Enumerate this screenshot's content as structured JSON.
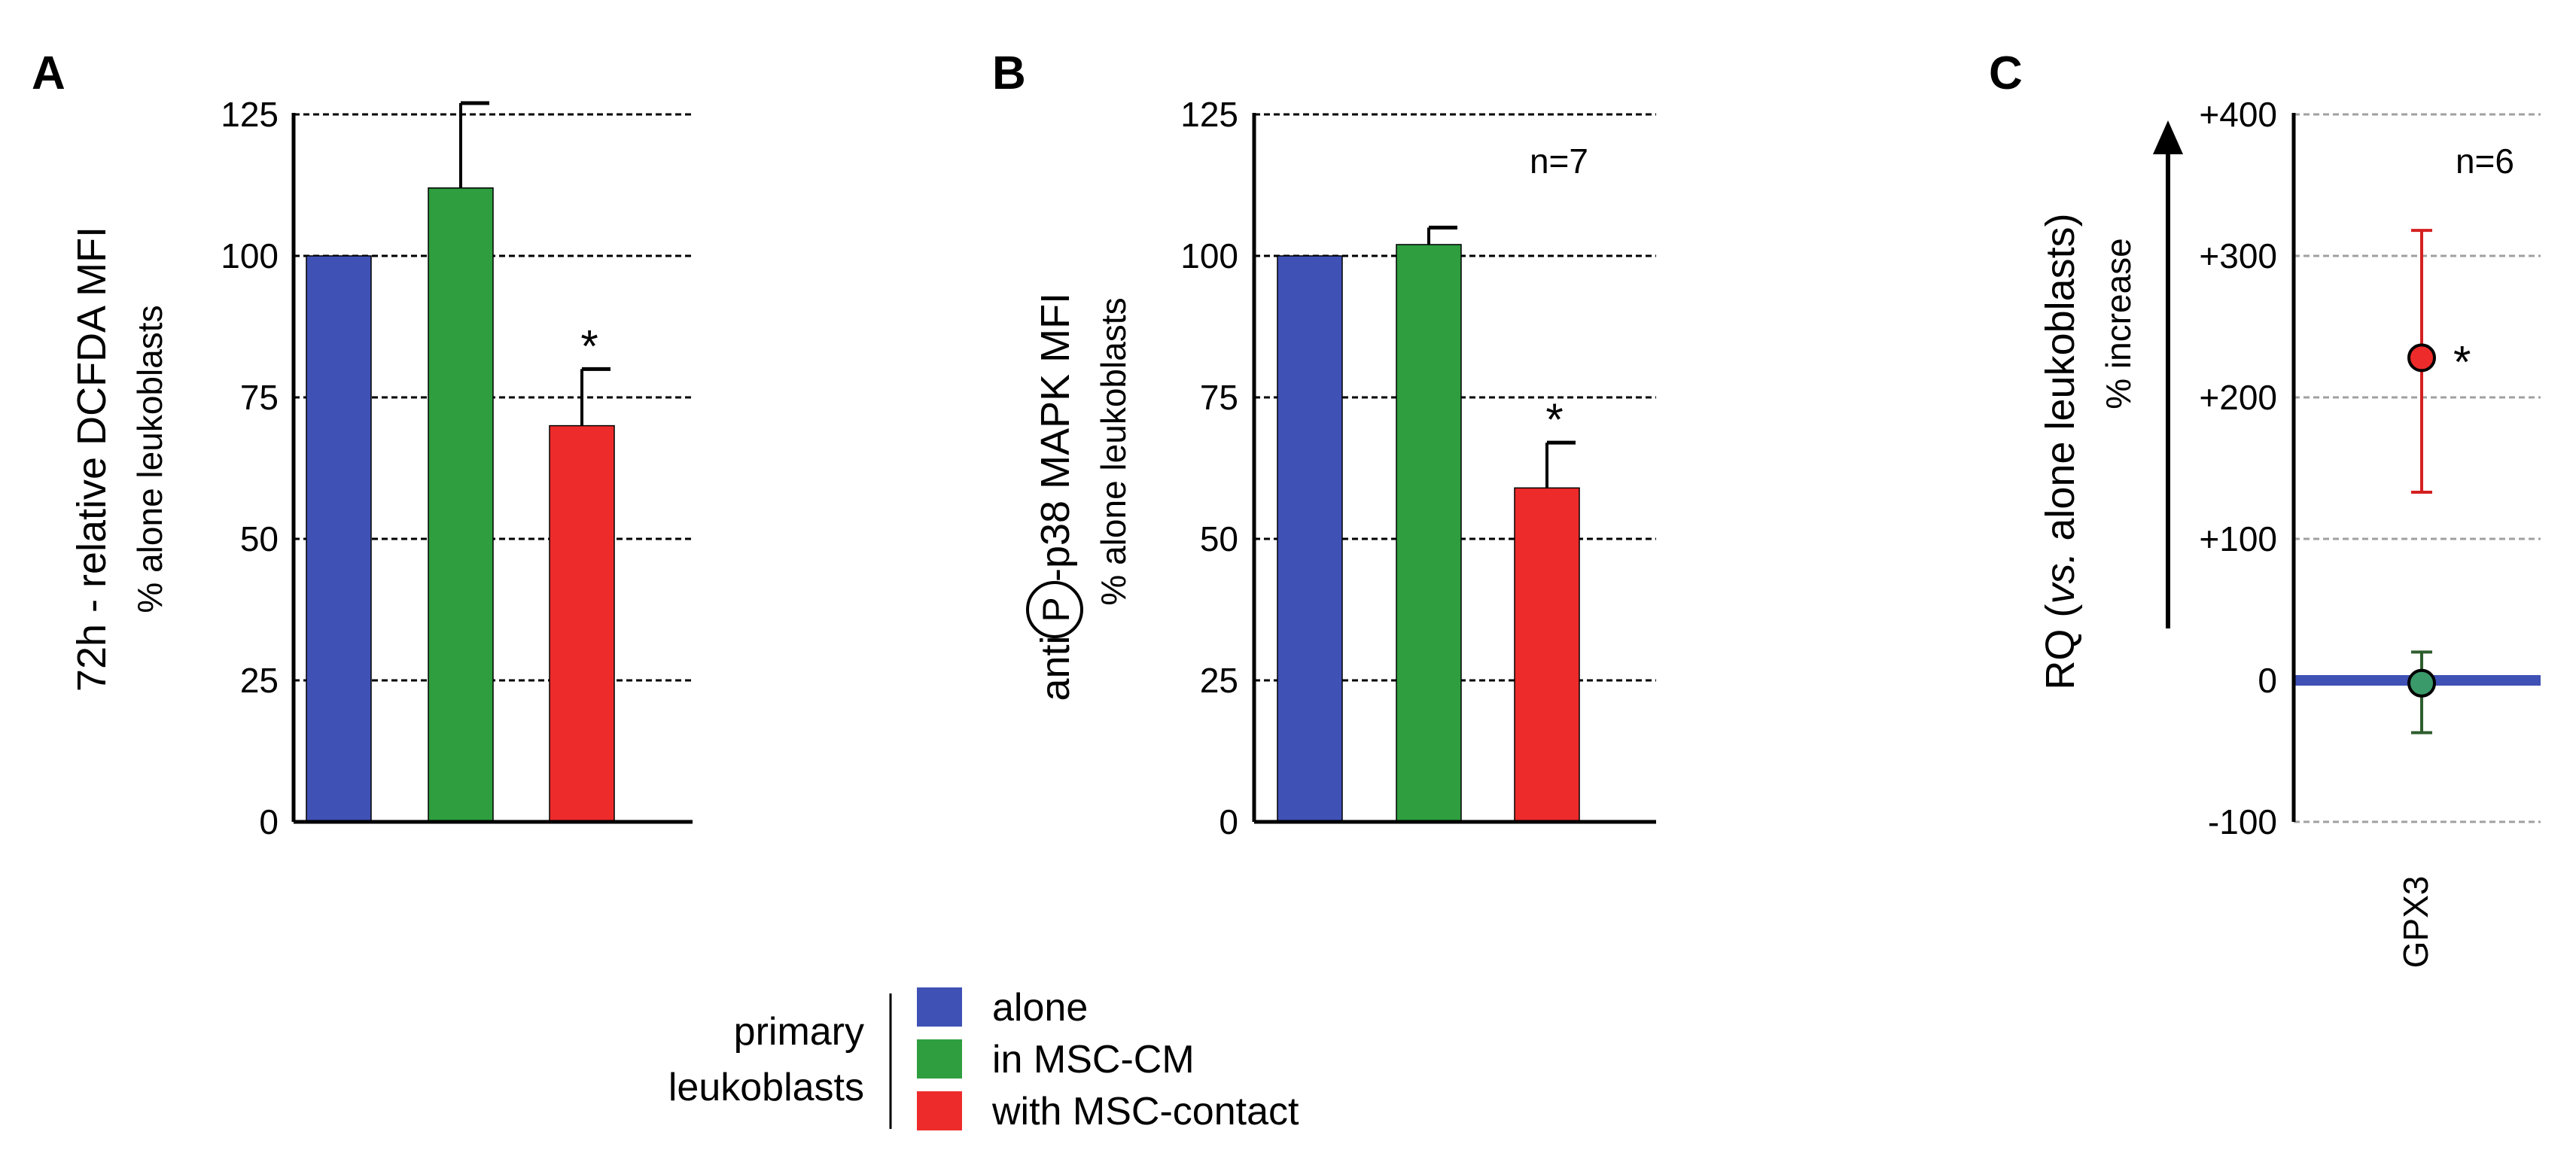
{
  "figure": {
    "panel_labels": [
      "A",
      "B",
      "C"
    ]
  },
  "chart_data": [
    {
      "panel": "A",
      "type": "bar",
      "categories": [
        "alone",
        "in MSC-CM",
        "with MSC-contact"
      ],
      "values": [
        100,
        112,
        70
      ],
      "errors": [
        0,
        15,
        10
      ],
      "significance": [
        "",
        "",
        "*"
      ],
      "ylabel": "72h - relative DCFDA MFI",
      "ylabel_sub": "% alone leukoblasts",
      "ylim": [
        0,
        125
      ],
      "yticks": [
        0,
        25,
        50,
        75,
        100,
        125
      ],
      "ytick_labels": [
        "0",
        "25",
        "50",
        "75",
        "100",
        "125"
      ],
      "grid": true,
      "n_label": "",
      "colors": [
        "#3f51b5",
        "#2e9e3f",
        "#ee2b2b"
      ]
    },
    {
      "panel": "B",
      "type": "bar",
      "categories": [
        "alone",
        "in MSC-CM",
        "with MSC-contact"
      ],
      "values": [
        100,
        102,
        59
      ],
      "errors": [
        0,
        3,
        8
      ],
      "significance": [
        "",
        "",
        "*"
      ],
      "ylabel_prefix": "anti",
      "ylabel_circled": "P",
      "ylabel_suffix": "-p38 MAPK MFI",
      "ylabel_sub": "% alone leukoblasts",
      "ylim": [
        0,
        125
      ],
      "yticks": [
        0,
        25,
        50,
        75,
        100,
        125
      ],
      "ytick_labels": [
        "0",
        "25",
        "50",
        "75",
        "100",
        "125"
      ],
      "grid": true,
      "n_label": "n=7",
      "colors": [
        "#3f51b5",
        "#2e9e3f",
        "#ee2b2b"
      ]
    },
    {
      "panel": "C",
      "type": "scatter",
      "categories": [
        "GPX3"
      ],
      "series": [
        {
          "values": [
            228
          ],
          "err_low": [
            133
          ],
          "err_high": [
            318
          ],
          "significance": "*",
          "color": "#ee2b2b",
          "errcolor": "#d42020"
        },
        {
          "values": [
            -2
          ],
          "err_low": [
            -37
          ],
          "err_high": [
            20
          ],
          "significance": "",
          "color": "#3a9a6a",
          "errcolor": "#2e5e2e"
        }
      ],
      "baseline": 0,
      "baseline_color": "#3f51b5",
      "ylabel_pre": "RQ (",
      "ylabel_italic": "vs.",
      "ylabel_post": " alone leukoblasts)",
      "ylabel_sub": "% increase",
      "ylim": [
        -100,
        400
      ],
      "yticks": [
        -100,
        0,
        100,
        200,
        300,
        400
      ],
      "ytick_labels": [
        "-100",
        "0",
        "+100",
        "+200",
        "+300",
        "+400"
      ],
      "grid": true,
      "n_label": "n=6"
    }
  ],
  "legend": {
    "title_line1": "primary",
    "title_line2": "leukoblasts",
    "entries": [
      {
        "label": "alone",
        "color": "#3f51b5"
      },
      {
        "label": "in MSC-CM",
        "color": "#2e9e3f"
      },
      {
        "label": "with MSC-contact",
        "color": "#ee2b2b"
      }
    ]
  }
}
